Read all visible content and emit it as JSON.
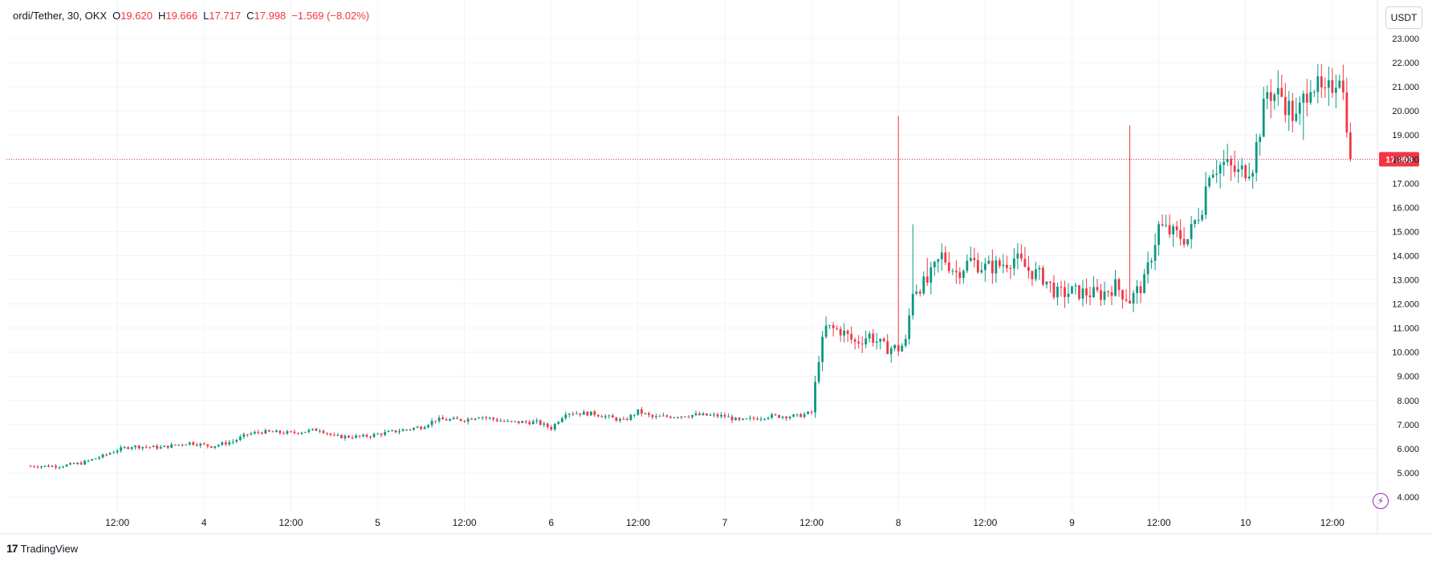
{
  "header": {
    "symbol": "ordi/Tether, 30, OKX",
    "o_label": "O",
    "o_value": "19.620",
    "h_label": "H",
    "h_value": "19.666",
    "l_label": "L",
    "l_value": "17.717",
    "c_label": "C",
    "c_value": "17.998",
    "change": "−1.569 (−8.02%)"
  },
  "currency_button": "USDT",
  "brand": {
    "logo": "17",
    "name": "TradingView"
  },
  "colors": {
    "up": "#089981",
    "down": "#f23645",
    "grid": "#f0f3fa",
    "axis_text": "#131722",
    "current_price": "#f23645"
  },
  "chart_data": {
    "type": "candlestick",
    "current_price": 17.998,
    "current_price_label": "17.998",
    "y_axis": {
      "range": [
        3.7,
        23.4
      ],
      "ticks": [
        4,
        5,
        6,
        7,
        8,
        9,
        10,
        11,
        12,
        13,
        14,
        15,
        16,
        17,
        18,
        19,
        20,
        21,
        22,
        23
      ],
      "tick_labels": [
        "4.000",
        "5.000",
        "6.000",
        "7.000",
        "8.000",
        "9.000",
        "10.000",
        "11.000",
        "12.000",
        "13.000",
        "14.000",
        "15.000",
        "16.000",
        "17.000",
        "18.000",
        "19.000",
        "20.000",
        "21.000",
        "22.000",
        "23.000"
      ]
    },
    "x_axis": {
      "unit": "30-minute bars, Day 3 00:00 to Day 10 16:00",
      "tick_hours": [
        12,
        24,
        36,
        48,
        60,
        72,
        84,
        96,
        108,
        120,
        132,
        144,
        156,
        168,
        180
      ],
      "tick_labels": [
        "12:00",
        "4",
        "12:00",
        "5",
        "12:00",
        "6",
        "12:00",
        "7",
        "12:00",
        "8",
        "12:00",
        "9",
        "12:00",
        "10",
        "12:00"
      ]
    },
    "anchors": [
      [
        0,
        5.28
      ],
      [
        4,
        5.28
      ],
      [
        7,
        5.4
      ],
      [
        10,
        5.7
      ],
      [
        12,
        5.95
      ],
      [
        14,
        6.1
      ],
      [
        18,
        6.05
      ],
      [
        22,
        6.25
      ],
      [
        25,
        6.1
      ],
      [
        28,
        6.3
      ],
      [
        30,
        6.6
      ],
      [
        32,
        6.7
      ],
      [
        36,
        6.65
      ],
      [
        40,
        6.8
      ],
      [
        42,
        6.5
      ],
      [
        46,
        6.5
      ],
      [
        50,
        6.7
      ],
      [
        54,
        6.9
      ],
      [
        56,
        7.2
      ],
      [
        60,
        7.2
      ],
      [
        62,
        7.35
      ],
      [
        66,
        7.1
      ],
      [
        70,
        7.1
      ],
      [
        72,
        6.85
      ],
      [
        74,
        7.5
      ],
      [
        78,
        7.45
      ],
      [
        82,
        7.15
      ],
      [
        84,
        7.55
      ],
      [
        86,
        7.3
      ],
      [
        92,
        7.4
      ],
      [
        96,
        7.35
      ],
      [
        98,
        7.15
      ],
      [
        102,
        7.35
      ],
      [
        106,
        7.35
      ],
      [
        108,
        7.5
      ],
      [
        109,
        9.8
      ],
      [
        110,
        11.0
      ],
      [
        112,
        10.9
      ],
      [
        114,
        10.4
      ],
      [
        116,
        10.7
      ],
      [
        118,
        10.2
      ],
      [
        120,
        10.15
      ],
      [
        121,
        10.4
      ],
      [
        122,
        12.6
      ],
      [
        124,
        12.9
      ],
      [
        126,
        14.0
      ],
      [
        128,
        13.3
      ],
      [
        130,
        13.8
      ],
      [
        132,
        13.5
      ],
      [
        134,
        13.6
      ],
      [
        136,
        13.9
      ],
      [
        138,
        13.4
      ],
      [
        140,
        13.1
      ],
      [
        142,
        12.4
      ],
      [
        144,
        12.5
      ],
      [
        148,
        12.4
      ],
      [
        150,
        12.75
      ],
      [
        152,
        12.15
      ],
      [
        154,
        12.9
      ],
      [
        156,
        15.2
      ],
      [
        158,
        14.9
      ],
      [
        160,
        14.7
      ],
      [
        162,
        16.1
      ],
      [
        163,
        17.6
      ],
      [
        165,
        17.8
      ],
      [
        167,
        17.4
      ],
      [
        169,
        17.8
      ],
      [
        171,
        20.8
      ],
      [
        173,
        20.6
      ],
      [
        175,
        19.6
      ],
      [
        177,
        21.3
      ],
      [
        179,
        20.5
      ],
      [
        181,
        21.7
      ],
      [
        182,
        19.6
      ],
      [
        183,
        17.998
      ]
    ],
    "spikes": [
      [
        120,
        19.8
      ],
      [
        122,
        15.3
      ],
      [
        124,
        13.9
      ],
      [
        152,
        19.4
      ],
      [
        173,
        20.7
      ],
      [
        176,
        18.8
      ]
    ]
  }
}
